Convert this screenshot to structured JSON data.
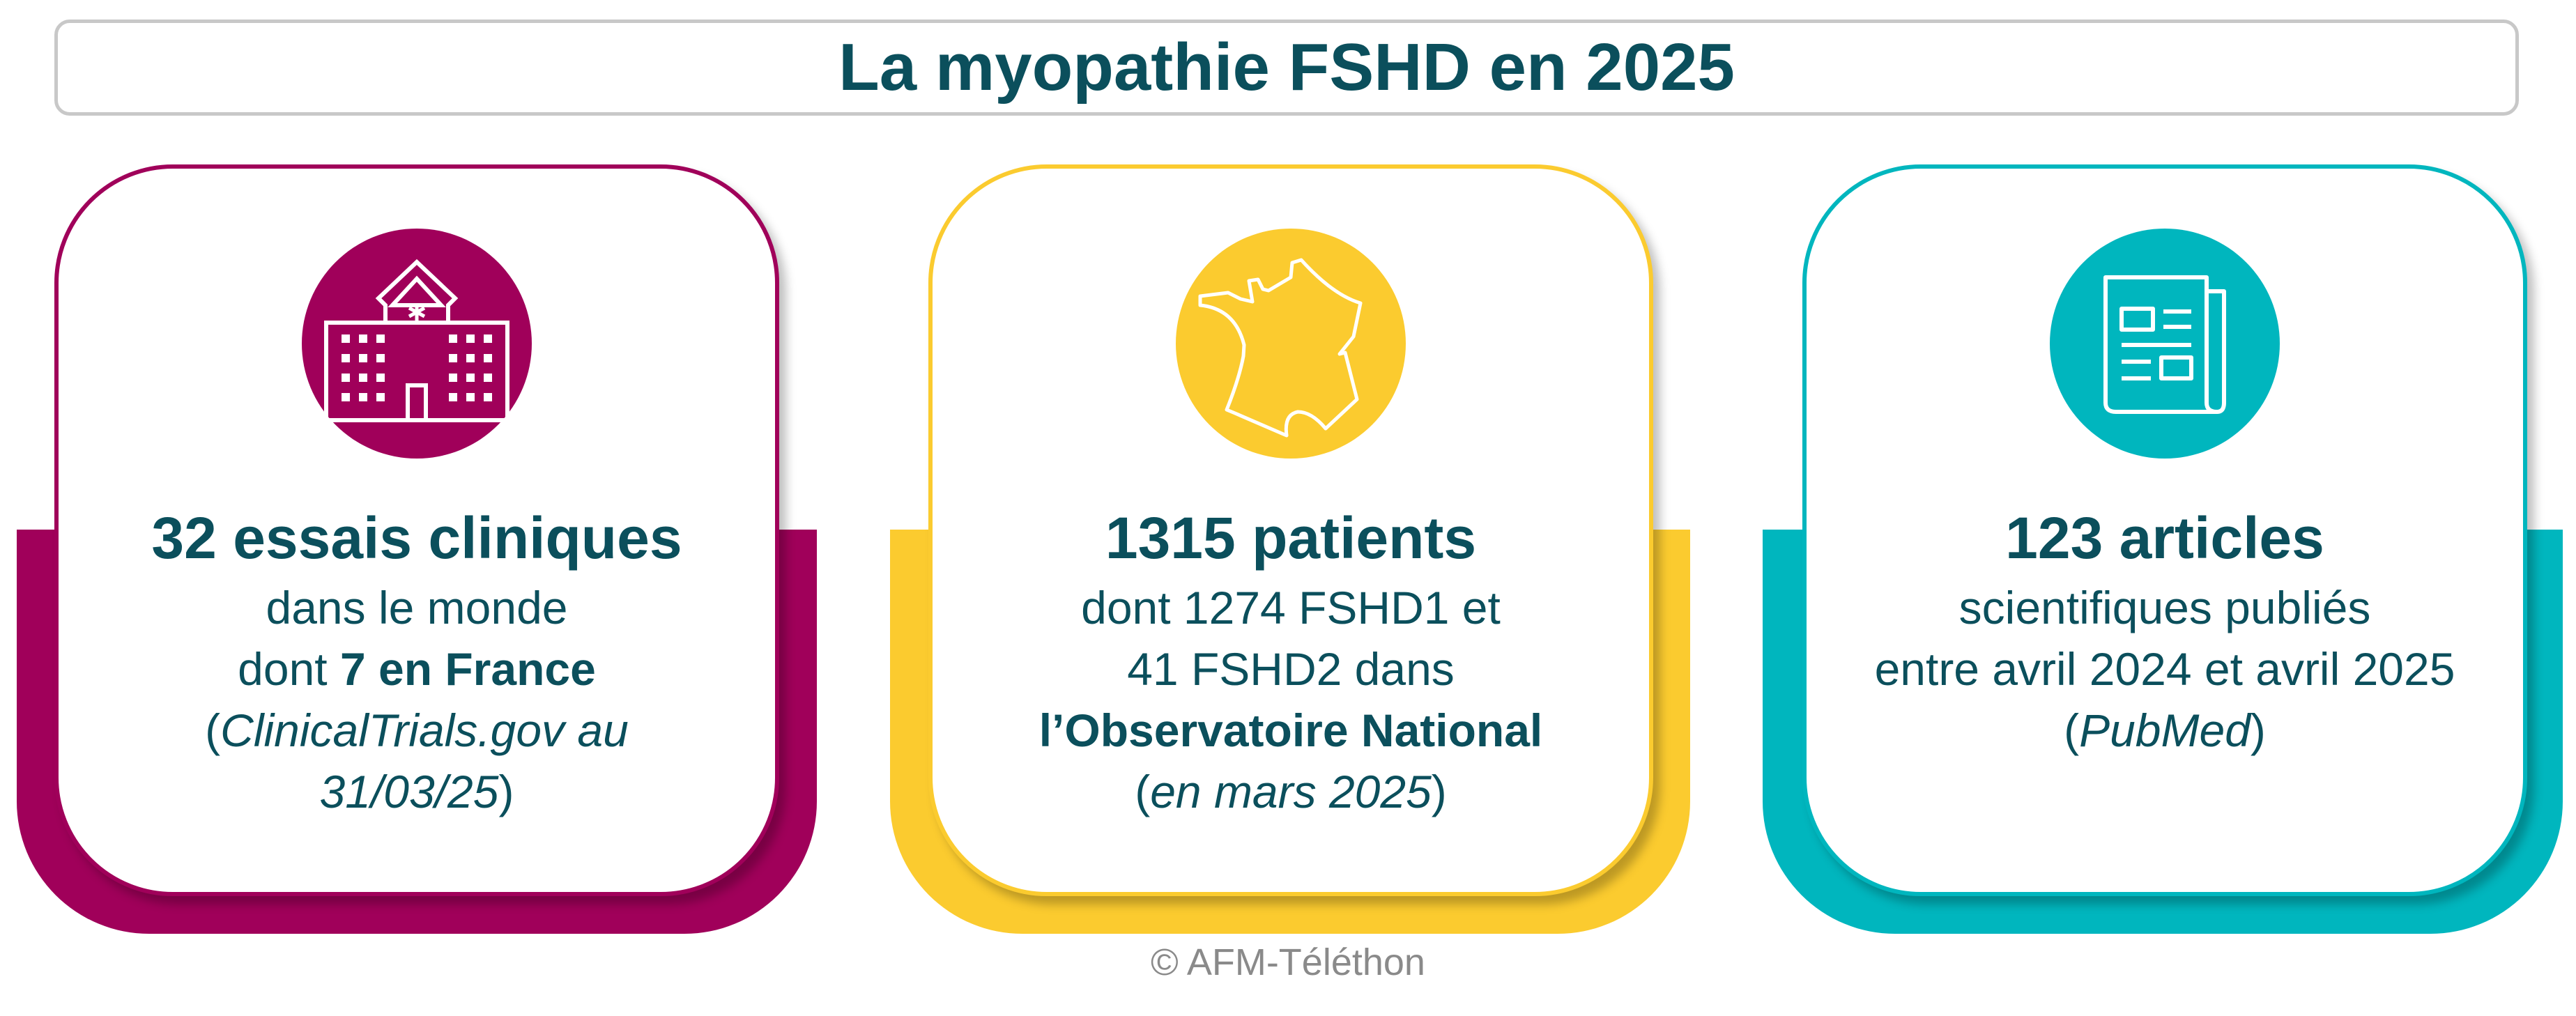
{
  "title": "La myopathie FSHD en 2025",
  "colors": {
    "magenta": "#a0005a",
    "yellow": "#fbcb2f",
    "teal": "#00b6be",
    "text": "#0b4f5c"
  },
  "cards": [
    {
      "icon": "hospital-icon",
      "heading": "32 essais cliniques",
      "l1": "dans le monde",
      "l2a": "dont ",
      "l2b": "7 en France",
      "l3a": "(",
      "l3b": "ClinicalTrials.gov au",
      "l4a": "31/03/25",
      "l4b": ")"
    },
    {
      "icon": "france-map-icon",
      "heading": "1315 patients",
      "l1": "dont 1274 FSHD1 et",
      "l2": "41 FSHD2 dans",
      "l3": "l’Observatoire National",
      "l4a": "(",
      "l4b": "en mars 2025",
      "l4c": ")"
    },
    {
      "icon": "newspaper-icon",
      "heading": "123 articles",
      "l1": "scientifiques publiés",
      "l2": "entre avril 2024 et avril 2025",
      "l3a": "(",
      "l3b": "PubMed",
      "l3c": ")"
    }
  ],
  "footer": "© AFM-Téléthon"
}
